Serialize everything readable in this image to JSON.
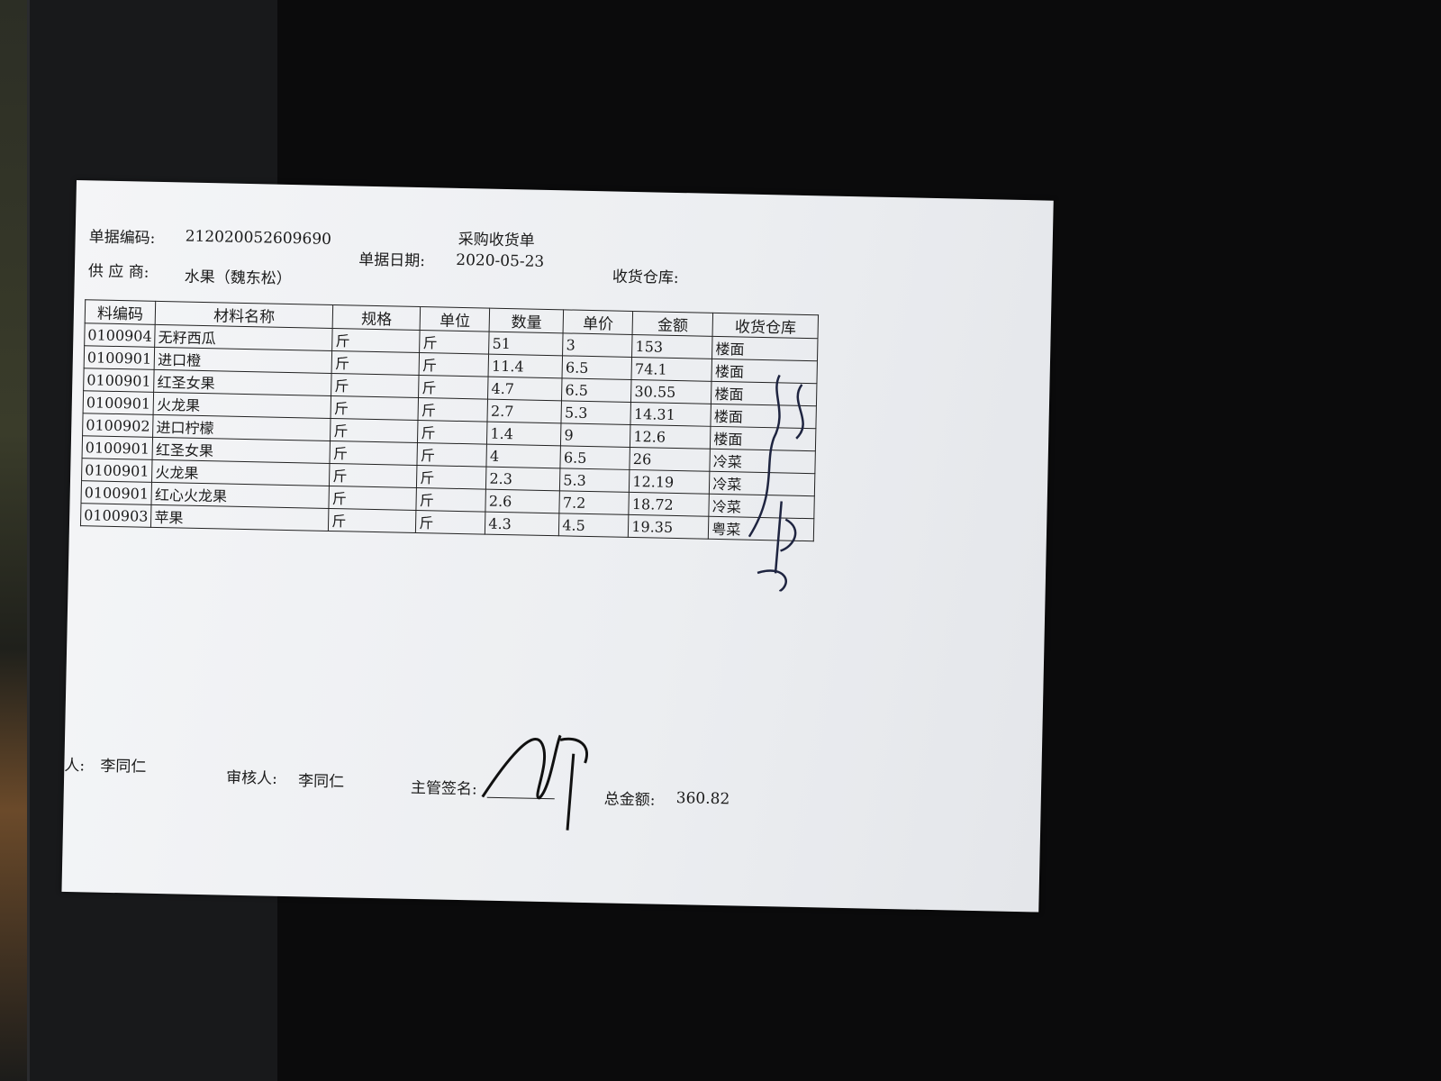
{
  "form": {
    "title": "采购收货单",
    "doc_no_label": "单据编码:",
    "doc_no": "212020052609690",
    "date_label": "单据日期:",
    "date": "2020-05-23",
    "supplier_label": "供 应 商:",
    "supplier": "水果（魏东松）",
    "warehouse_label": "收货仓库:"
  },
  "table": {
    "headers": [
      "料编码",
      "材料名称",
      "规格",
      "单位",
      "数量",
      "单价",
      "金额",
      "收货仓库"
    ],
    "rows": [
      {
        "code": "0100904",
        "name": "无籽西瓜",
        "spec": "斤",
        "unit": "斤",
        "qty": "51",
        "price": "3",
        "amount": "153",
        "warehouse": "楼面"
      },
      {
        "code": "0100901",
        "name": "进口橙",
        "spec": "斤",
        "unit": "斤",
        "qty": "11.4",
        "price": "6.5",
        "amount": "74.1",
        "warehouse": "楼面"
      },
      {
        "code": "0100901",
        "name": "红圣女果",
        "spec": "斤",
        "unit": "斤",
        "qty": "4.7",
        "price": "6.5",
        "amount": "30.55",
        "warehouse": "楼面"
      },
      {
        "code": "0100901",
        "name": "火龙果",
        "spec": "斤",
        "unit": "斤",
        "qty": "2.7",
        "price": "5.3",
        "amount": "14.31",
        "warehouse": "楼面"
      },
      {
        "code": "0100902",
        "name": "进口柠檬",
        "spec": "斤",
        "unit": "斤",
        "qty": "1.4",
        "price": "9",
        "amount": "12.6",
        "warehouse": "楼面"
      },
      {
        "code": "0100901",
        "name": "红圣女果",
        "spec": "斤",
        "unit": "斤",
        "qty": "4",
        "price": "6.5",
        "amount": "26",
        "warehouse": "冷菜"
      },
      {
        "code": "0100901",
        "name": "火龙果",
        "spec": "斤",
        "unit": "斤",
        "qty": "2.3",
        "price": "5.3",
        "amount": "12.19",
        "warehouse": "冷菜"
      },
      {
        "code": "0100901",
        "name": "红心火龙果",
        "spec": "斤",
        "unit": "斤",
        "qty": "2.6",
        "price": "7.2",
        "amount": "18.72",
        "warehouse": "冷菜"
      },
      {
        "code": "0100903",
        "name": "苹果",
        "spec": "斤",
        "unit": "斤",
        "qty": "4.3",
        "price": "4.5",
        "amount": "19.35",
        "warehouse": "粤菜"
      }
    ]
  },
  "footer": {
    "maker_label": "人:",
    "maker": "李同仁",
    "reviewer_label": "审核人:",
    "reviewer": "李同仁",
    "supervisor_label": "主管签名:",
    "total_label": "总金额:",
    "total": "360.82"
  }
}
